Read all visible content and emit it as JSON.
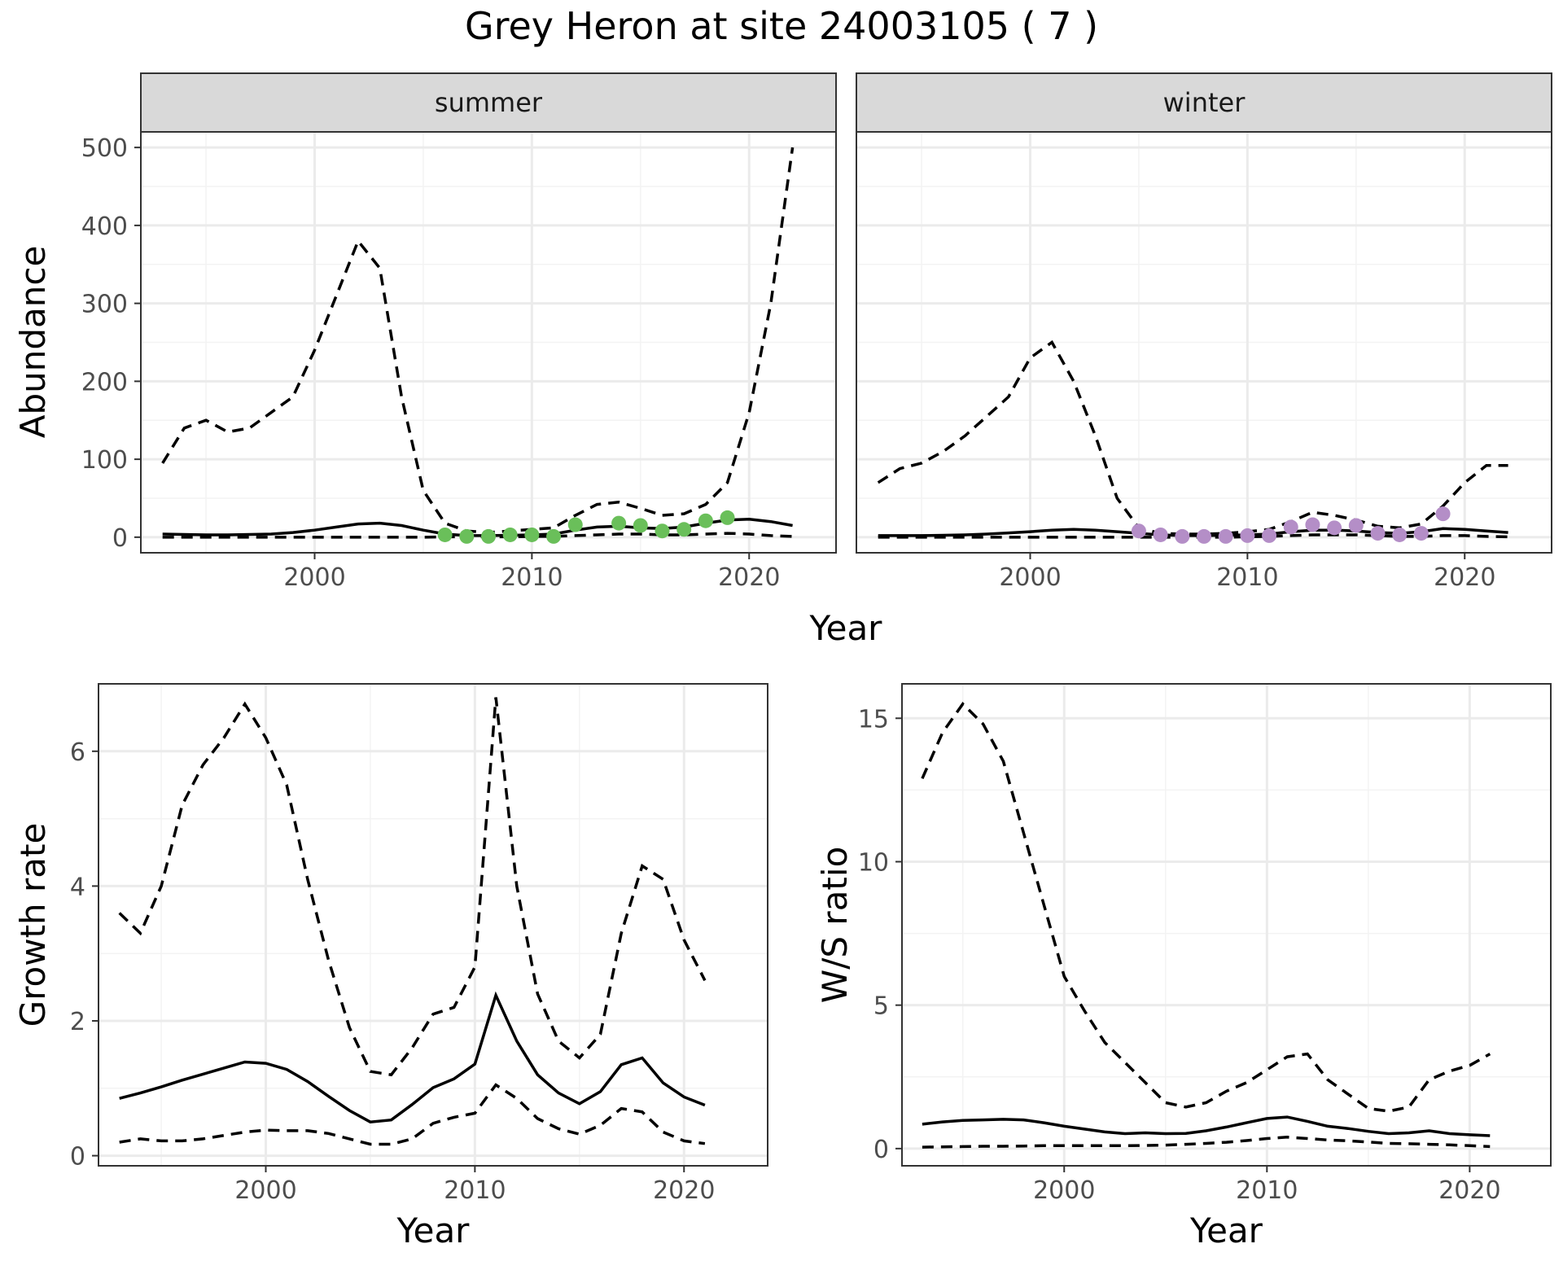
{
  "chart_data": [
    {
      "type": "line",
      "title": "Grey Heron at site 24003105 ( 7 )",
      "facets": [
        {
          "label": "summer",
          "point_color": "#6abf5a",
          "x": [
            1993,
            1994,
            1995,
            1996,
            1997,
            1998,
            1999,
            2000,
            2001,
            2002,
            2003,
            2004,
            2005,
            2006,
            2007,
            2008,
            2009,
            2010,
            2011,
            2012,
            2013,
            2014,
            2015,
            2016,
            2017,
            2018,
            2019,
            2020,
            2021,
            2022
          ],
          "estimate": [
            4,
            3.5,
            3,
            3,
            3.5,
            4,
            6,
            9,
            13,
            17,
            18,
            15,
            9,
            4,
            2,
            2,
            2.5,
            3,
            4,
            9,
            13,
            14,
            12,
            11,
            13,
            18,
            22,
            23,
            20,
            15
          ],
          "upper": [
            95,
            140,
            150,
            135,
            140,
            160,
            180,
            240,
            310,
            380,
            345,
            180,
            60,
            18,
            8,
            6,
            8,
            10,
            12,
            28,
            42,
            45,
            37,
            28,
            30,
            42,
            70,
            160,
            300,
            500
          ],
          "lower": [
            0,
            0,
            0,
            0,
            0,
            0,
            0,
            0,
            0,
            0,
            0,
            0,
            0,
            0.5,
            0.5,
            0.5,
            0.5,
            1,
            1,
            2,
            3,
            4,
            4,
            3,
            3,
            4,
            5,
            4,
            2,
            1
          ],
          "observed_x": [
            2006,
            2007,
            2008,
            2009,
            2010,
            2011,
            2012,
            2014,
            2015,
            2016,
            2017,
            2018,
            2019
          ],
          "observed_y": [
            3,
            1,
            1,
            3,
            3,
            1,
            16,
            18,
            15,
            8,
            10,
            21,
            25
          ]
        },
        {
          "label": "winter",
          "point_color": "#b48ec7",
          "x": [
            1993,
            1994,
            1995,
            1996,
            1997,
            1998,
            1999,
            2000,
            2001,
            2002,
            2003,
            2004,
            2005,
            2006,
            2007,
            2008,
            2009,
            2010,
            2011,
            2012,
            2013,
            2014,
            2015,
            2016,
            2017,
            2018,
            2019,
            2020,
            2021,
            2022
          ],
          "estimate": [
            2,
            2,
            2,
            2.5,
            3,
            4,
            5.5,
            7,
            9,
            10,
            9,
            7,
            5,
            3,
            2,
            2,
            2.5,
            3,
            4,
            7,
            9,
            9,
            8,
            6,
            5,
            7,
            11,
            10,
            8,
            6
          ],
          "upper": [
            70,
            88,
            95,
            110,
            130,
            155,
            180,
            230,
            250,
            200,
            130,
            50,
            12,
            5,
            4,
            4,
            5,
            7,
            10,
            20,
            32,
            28,
            22,
            14,
            12,
            17,
            40,
            70,
            92,
            92
          ],
          "lower": [
            0,
            0,
            0,
            0,
            0,
            0,
            0,
            0,
            0,
            0,
            0,
            0,
            0,
            0,
            0,
            0,
            0,
            0.5,
            1,
            2,
            3,
            3,
            3,
            2,
            1,
            1,
            2,
            2,
            1,
            0.5
          ],
          "observed_x": [
            2005,
            2006,
            2007,
            2008,
            2009,
            2010,
            2011,
            2012,
            2013,
            2014,
            2015,
            2016,
            2017,
            2018,
            2019
          ],
          "observed_y": [
            8,
            3,
            1,
            1,
            1,
            2,
            2,
            13,
            16,
            12,
            15,
            5,
            3,
            5,
            30
          ]
        }
      ],
      "xlabel": "Year",
      "ylabel": "Abundance",
      "xlim": [
        1992,
        2024
      ],
      "ylim": [
        -20,
        520
      ],
      "xticks": [
        2000,
        2010,
        2020
      ],
      "yticks": [
        0,
        100,
        200,
        300,
        400,
        500
      ],
      "legend": "none"
    },
    {
      "type": "line",
      "x": [
        1993,
        1994,
        1995,
        1996,
        1997,
        1998,
        1999,
        2000,
        2001,
        2002,
        2003,
        2004,
        2005,
        2006,
        2007,
        2008,
        2009,
        2010,
        2011,
        2012,
        2013,
        2014,
        2015,
        2016,
        2017,
        2018,
        2019,
        2020,
        2021
      ],
      "series": [
        {
          "name": "estimate",
          "style": "solid",
          "values": [
            0.85,
            0.93,
            1.02,
            1.12,
            1.21,
            1.3,
            1.39,
            1.37,
            1.28,
            1.1,
            0.88,
            0.67,
            0.5,
            0.53,
            0.76,
            1.01,
            1.14,
            1.36,
            2.38,
            1.7,
            1.2,
            0.93,
            0.77,
            0.95,
            1.35,
            1.45,
            1.08,
            0.87,
            0.75
          ]
        },
        {
          "name": "upper",
          "style": "dashed",
          "values": [
            3.6,
            3.3,
            4,
            5.2,
            5.8,
            6.2,
            6.7,
            6.2,
            5.5,
            4.1,
            2.9,
            1.9,
            1.25,
            1.2,
            1.6,
            2.1,
            2.2,
            2.8,
            6.8,
            4,
            2.4,
            1.7,
            1.45,
            1.8,
            3.3,
            4.3,
            4.1,
            3.2,
            2.6
          ]
        },
        {
          "name": "lower",
          "style": "dashed",
          "values": [
            0.2,
            0.25,
            0.22,
            0.22,
            0.25,
            0.3,
            0.35,
            0.38,
            0.37,
            0.37,
            0.33,
            0.25,
            0.17,
            0.17,
            0.25,
            0.48,
            0.57,
            0.63,
            1.05,
            0.85,
            0.55,
            0.4,
            0.32,
            0.45,
            0.7,
            0.65,
            0.35,
            0.22,
            0.18
          ]
        }
      ],
      "xlabel": "Year",
      "ylabel": "Growth rate",
      "xlim": [
        1992,
        2024
      ],
      "ylim": [
        -0.15,
        7.0
      ],
      "xticks": [
        2000,
        2010,
        2020
      ],
      "yticks": [
        0,
        2,
        4,
        6
      ],
      "legend": "none"
    },
    {
      "type": "line",
      "x": [
        1993,
        1994,
        1995,
        1996,
        1997,
        1998,
        1999,
        2000,
        2001,
        2002,
        2003,
        2004,
        2005,
        2006,
        2007,
        2008,
        2009,
        2010,
        2011,
        2012,
        2013,
        2014,
        2015,
        2016,
        2017,
        2018,
        2019,
        2020,
        2021
      ],
      "series": [
        {
          "name": "estimate",
          "style": "solid",
          "values": [
            0.85,
            0.93,
            0.98,
            1.0,
            1.02,
            1.0,
            0.9,
            0.78,
            0.68,
            0.58,
            0.52,
            0.55,
            0.52,
            0.53,
            0.62,
            0.75,
            0.9,
            1.05,
            1.1,
            0.95,
            0.78,
            0.7,
            0.6,
            0.52,
            0.55,
            0.62,
            0.52,
            0.48,
            0.45
          ]
        },
        {
          "name": "upper",
          "style": "dashed",
          "values": [
            12.9,
            14.5,
            15.5,
            14.8,
            13.5,
            11.0,
            8.5,
            6.0,
            4.8,
            3.7,
            3.0,
            2.3,
            1.6,
            1.45,
            1.6,
            2.0,
            2.3,
            2.75,
            3.2,
            3.3,
            2.4,
            1.9,
            1.4,
            1.3,
            1.45,
            2.4,
            2.7,
            2.9,
            3.3
          ]
        },
        {
          "name": "lower",
          "style": "dashed",
          "values": [
            0.05,
            0.06,
            0.07,
            0.08,
            0.08,
            0.09,
            0.1,
            0.1,
            0.1,
            0.1,
            0.1,
            0.11,
            0.12,
            0.15,
            0.18,
            0.22,
            0.28,
            0.35,
            0.4,
            0.35,
            0.3,
            0.27,
            0.23,
            0.18,
            0.17,
            0.15,
            0.13,
            0.1,
            0.07
          ]
        }
      ],
      "xlabel": "Year",
      "ylabel": "W/S ratio",
      "xlim": [
        1992,
        2024
      ],
      "ylim": [
        -0.6,
        16.2
      ],
      "xticks": [
        2000,
        2010,
        2020
      ],
      "yticks": [
        0,
        5,
        10,
        15
      ],
      "legend": "none"
    }
  ]
}
